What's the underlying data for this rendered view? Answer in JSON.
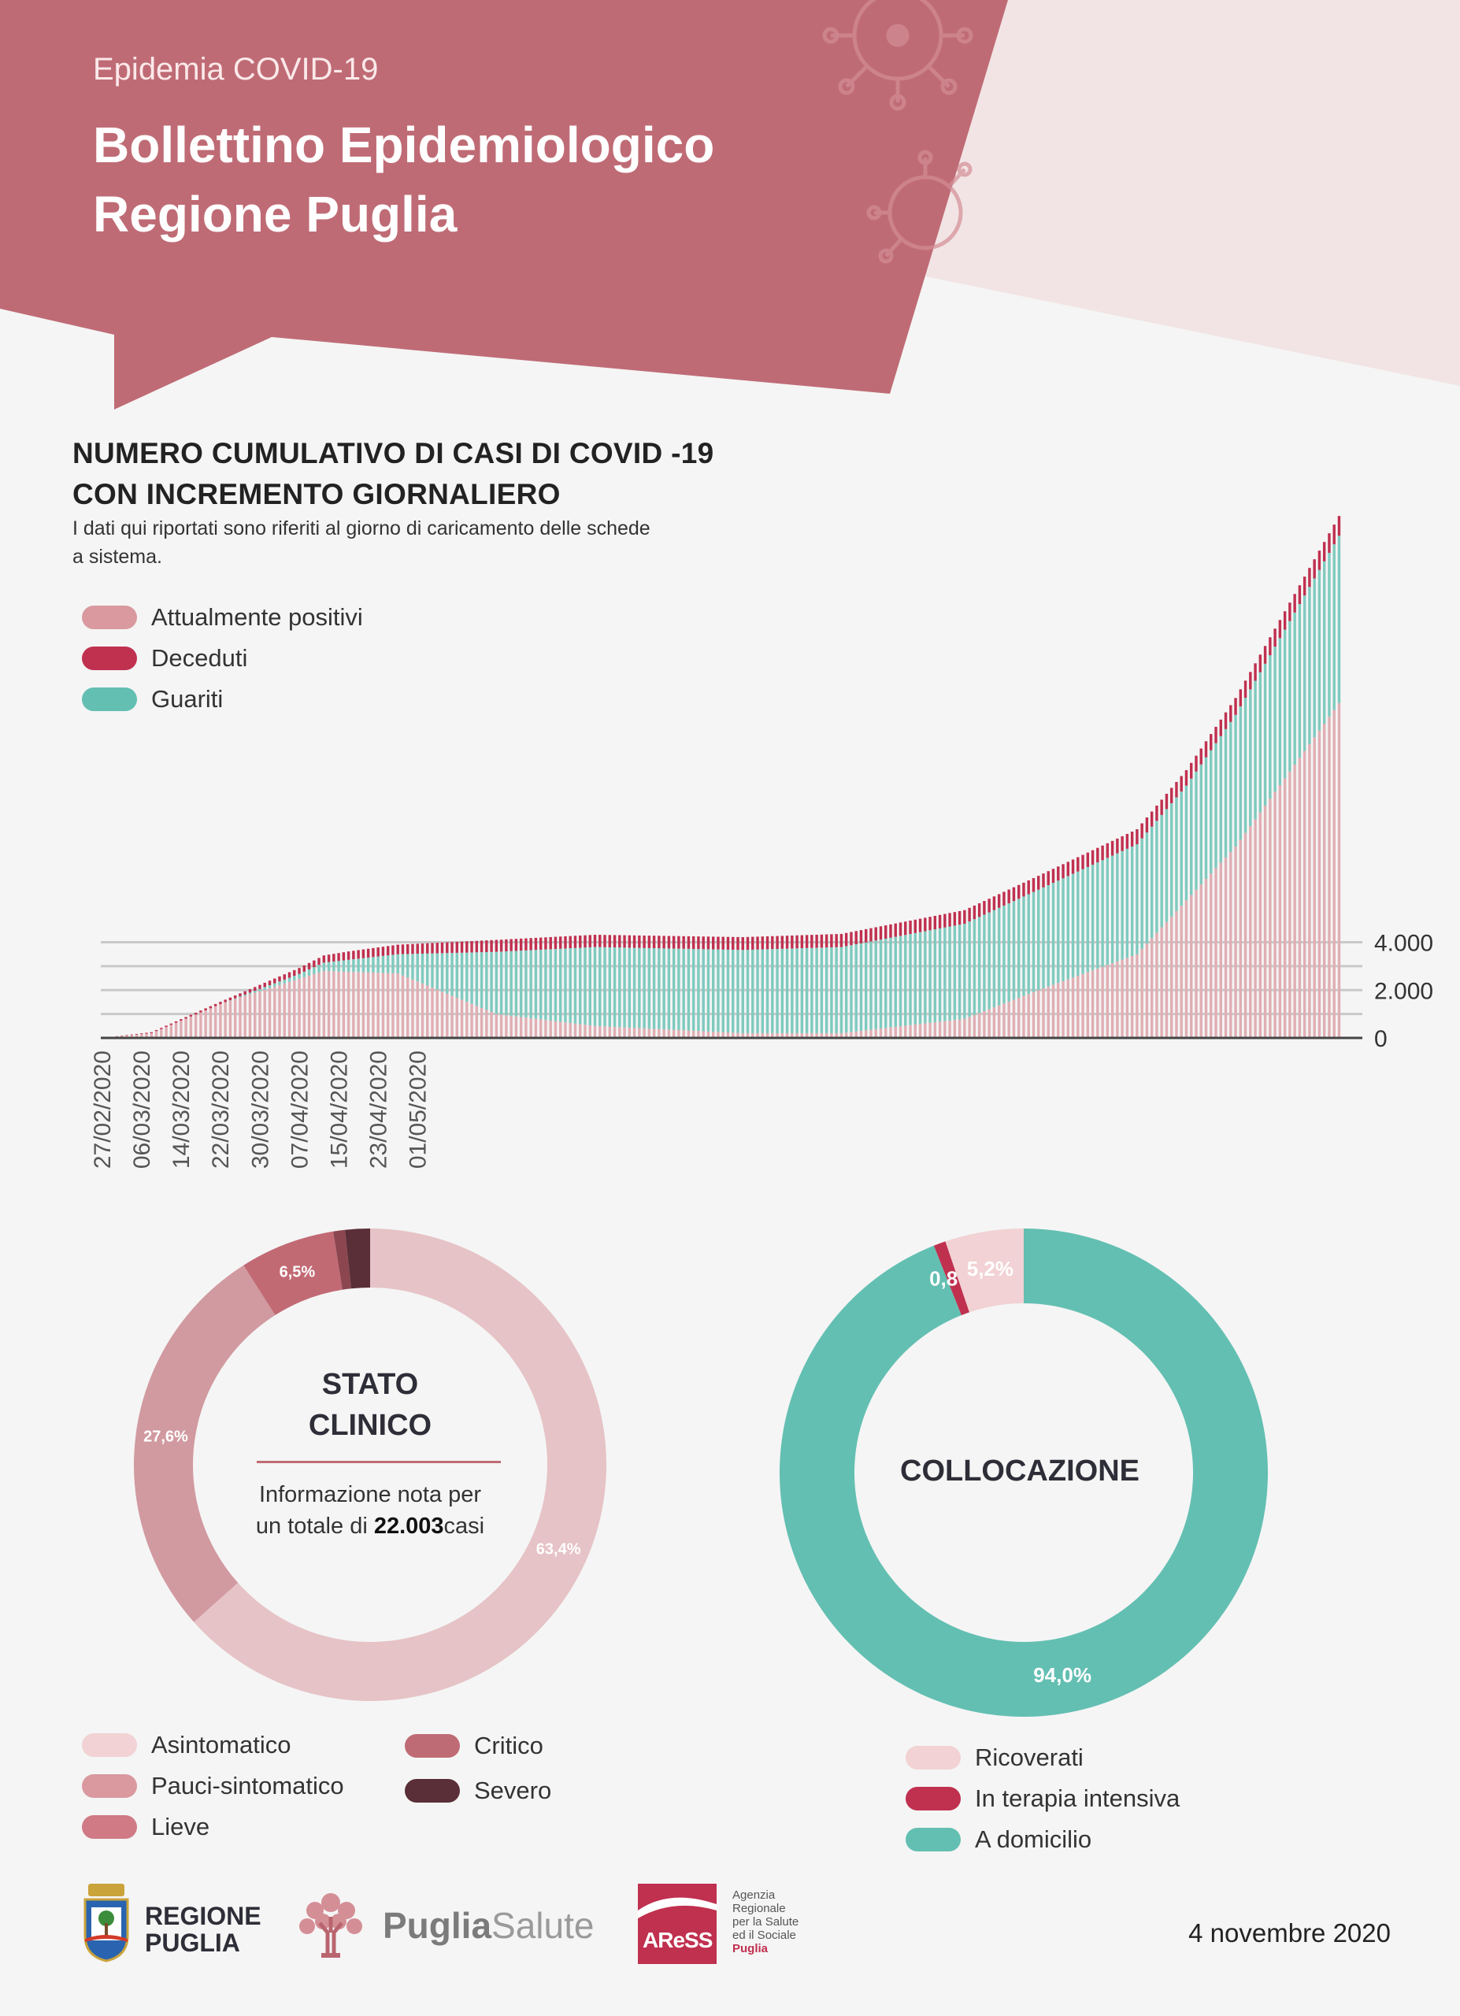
{
  "header": {
    "eyebrow": "Epidemia COVID-19",
    "title_line1": "Bollettino Epidemiologico",
    "title_line2": "Regione Puglia"
  },
  "colors": {
    "header_band": "#bf6b75",
    "header_right": "#f2e4e4",
    "attualmente_positivi": "#d9999f",
    "deceduti": "#c0304f",
    "guariti": "#63bfb2",
    "asintomatico": "#f2d2d4",
    "pauci": "#d9999f",
    "lieve": "#cf7a85",
    "critico": "#bf6b75",
    "severo": "#5a2f37",
    "ricoverati": "#f2d2d4",
    "terapia_intensiva": "#c0304f",
    "domicilio": "#63bfb2"
  },
  "main_section": {
    "title_line1": "NUMERO CUMULATIVO DI CASI DI COVID -19",
    "title_line2": "CON INCREMENTO GIORNALIERO",
    "subtitle": "I dati qui riportati sono riferiti al giorno di caricamento delle schede a sistema."
  },
  "main_legend": [
    {
      "label": "Attualmente positivi",
      "color": "#d9999f"
    },
    {
      "label": "Deceduti",
      "color": "#c0304f"
    },
    {
      "label": "Guariti",
      "color": "#63bfb2"
    }
  ],
  "chart_data": [
    {
      "type": "bar",
      "stacked": true,
      "date_start": "27/02/2020",
      "date_end": "04/11/2020",
      "x_tick_labels": [
        "27/02/2020",
        "06/03/2020",
        "14/03/2020",
        "22/03/2020",
        "30/03/2020",
        "07/04/2020",
        "15/04/2020",
        "23/04/2020",
        "01/05/2020"
      ],
      "y_tick_labels": [
        "4.000",
        "2.000",
        "0"
      ],
      "ylim": [
        0,
        22000
      ],
      "grid": true,
      "legend": "top-left",
      "series_names": [
        "Attualmente positivi",
        "Deceduti",
        "Guariti"
      ],
      "series": [
        {
          "name": "Attualmente positivi",
          "keyframes": [
            [
              0,
              0
            ],
            [
              10,
              200
            ],
            [
              25,
              1500
            ],
            [
              45,
              2800
            ],
            [
              60,
              2700
            ],
            [
              80,
              1000
            ],
            [
              100,
              500
            ],
            [
              130,
              200
            ],
            [
              150,
              200
            ],
            [
              175,
              800
            ],
            [
              190,
              2000
            ],
            [
              210,
              3500
            ],
            [
              230,
              8000
            ],
            [
              251,
              14000
            ]
          ]
        },
        {
          "name": "Deceduti",
          "keyframes": [
            [
              0,
              0
            ],
            [
              25,
              100
            ],
            [
              50,
              350
            ],
            [
              80,
              500
            ],
            [
              150,
              550
            ],
            [
              190,
              580
            ],
            [
              220,
              650
            ],
            [
              251,
              830
            ]
          ]
        },
        {
          "name": "Guariti",
          "keyframes": [
            [
              0,
              0
            ],
            [
              25,
              0
            ],
            [
              40,
              200
            ],
            [
              60,
              800
            ],
            [
              80,
              2600
            ],
            [
              100,
              3300
            ],
            [
              150,
              3600
            ],
            [
              190,
              4200
            ],
            [
              220,
              4800
            ],
            [
              251,
              7000
            ]
          ]
        }
      ]
    },
    {
      "type": "pie",
      "title_line1": "STATO",
      "title_line2": "CLINICO",
      "note_line1": "Informazione nota per",
      "note_prefix": "un totale di",
      "note_total": "22.003",
      "note_suffix": "casi",
      "categories": [
        "Asintomatico",
        "Pauci-sintomatico",
        "Lieve",
        "Critico",
        "Severo"
      ],
      "values": [
        63.4,
        27.6,
        6.5,
        0.8,
        1.7
      ],
      "labels": [
        "63,4%",
        "27,6%",
        "6,5%",
        "",
        ""
      ],
      "colors": [
        "#e6c3c6",
        "#d19aa0",
        "#c26a74",
        "#8c4650",
        "#5a2f37"
      ]
    },
    {
      "type": "pie",
      "title": "COLLOCAZIONE",
      "categories": [
        "A domicilio",
        "In terapia intensiva",
        "Ricoverati"
      ],
      "values": [
        94.0,
        0.8,
        5.2
      ],
      "labels": [
        "94,0%",
        "0,8%",
        "5,2%"
      ],
      "colors": [
        "#63bfb2",
        "#c0304f",
        "#f2d2d4"
      ]
    }
  ],
  "clinical_legend": [
    {
      "label": "Asintomatico",
      "color": "#f2d2d4"
    },
    {
      "label": "Pauci-sintomatico",
      "color": "#d9999f"
    },
    {
      "label": "Lieve",
      "color": "#cf7a85"
    },
    {
      "label": "Critico",
      "color": "#bf6b75"
    },
    {
      "label": "Severo",
      "color": "#5a2f37"
    }
  ],
  "collocation_legend": [
    {
      "label": "Ricoverati",
      "color": "#f2d2d4"
    },
    {
      "label": "In terapia intensiva",
      "color": "#c0304f"
    },
    {
      "label": "A domicilio",
      "color": "#63bfb2"
    }
  ],
  "footer": {
    "regione_line1": "REGIONE",
    "regione_line2": "PUGLIA",
    "puglia": "Puglia",
    "salute": "Salute",
    "aress": "AReSS",
    "aress_desc": [
      "Agenzia",
      "Regionale",
      "per la Salute",
      "ed il Sociale"
    ],
    "aress_region": "Puglia",
    "date": "4 novembre 2020"
  }
}
